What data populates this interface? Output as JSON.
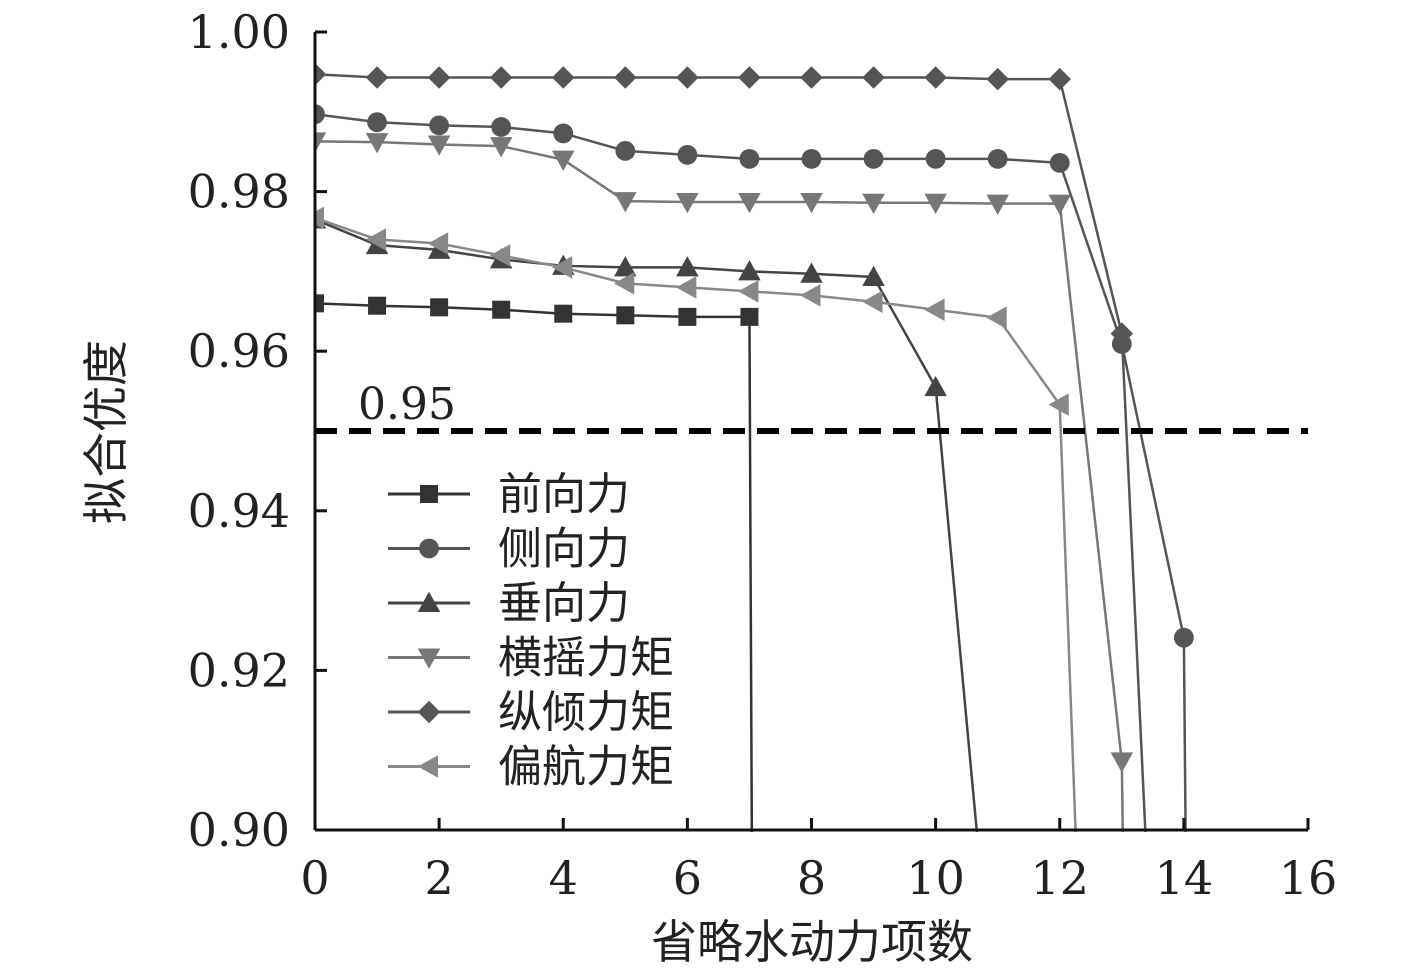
{
  "chart_data": {
    "type": "line",
    "title": "",
    "xlabel": "省略水动力项数",
    "ylabel": "拟合优度",
    "xlim": [
      0,
      16
    ],
    "ylim": [
      0.9,
      1.0
    ],
    "xticks": [
      "0",
      "2",
      "4",
      "6",
      "8",
      "10",
      "12",
      "14",
      "16"
    ],
    "yticks": [
      "0.90",
      "0.92",
      "0.94",
      "0.96",
      "0.98",
      "1.00"
    ],
    "grid": false,
    "legend_position": "lower-left",
    "reference_line": {
      "y": 0.95,
      "label": "0.95",
      "style": "dashed",
      "color": "#000000"
    },
    "series": [
      {
        "name": "前向力",
        "marker": "square",
        "color": "#333333",
        "x": [
          0,
          1,
          2,
          3,
          4,
          5,
          6,
          7,
          7.05
        ],
        "y": [
          0.966,
          0.9657,
          0.9655,
          0.9652,
          0.9647,
          0.9645,
          0.9643,
          0.9643,
          0.88
        ]
      },
      {
        "name": "侧向力",
        "marker": "circle",
        "color": "#555555",
        "x": [
          0,
          1,
          2,
          3,
          4,
          5,
          6,
          7,
          8,
          9,
          10,
          11,
          12,
          13,
          14,
          14.05
        ],
        "y": [
          0.9897,
          0.9887,
          0.9883,
          0.9881,
          0.9873,
          0.9851,
          0.9846,
          0.9841,
          0.9841,
          0.9841,
          0.9841,
          0.9841,
          0.9836,
          0.9609,
          0.9241,
          0.88
        ]
      },
      {
        "name": "垂向力",
        "marker": "triangle-up",
        "color": "#444444",
        "x": [
          0,
          1,
          2,
          3,
          4,
          5,
          6,
          7,
          8,
          9,
          10,
          10.9
        ],
        "y": [
          0.9765,
          0.9733,
          0.9727,
          0.9715,
          0.9707,
          0.9705,
          0.9705,
          0.97,
          0.9697,
          0.9693,
          0.9555,
          0.88
        ]
      },
      {
        "name": "横摇力矩",
        "marker": "triangle-down",
        "color": "#777777",
        "x": [
          0,
          1,
          2,
          3,
          4,
          5,
          6,
          7,
          8,
          9,
          10,
          11,
          12,
          13,
          13.05
        ],
        "y": [
          0.9863,
          0.9862,
          0.9859,
          0.9857,
          0.984,
          0.9788,
          0.9787,
          0.9787,
          0.9787,
          0.9786,
          0.9786,
          0.9785,
          0.9785,
          0.9086,
          0.88
        ]
      },
      {
        "name": "纵倾力矩",
        "marker": "diamond",
        "color": "#555555",
        "x": [
          0,
          1,
          2,
          3,
          4,
          5,
          6,
          7,
          8,
          9,
          10,
          11,
          12,
          13,
          13.5
        ],
        "y": [
          0.9947,
          0.9943,
          0.9943,
          0.9943,
          0.9943,
          0.9943,
          0.9943,
          0.9943,
          0.9943,
          0.9943,
          0.9943,
          0.9941,
          0.9941,
          0.9622,
          0.88
        ]
      },
      {
        "name": "偏航力矩",
        "marker": "triangle-left",
        "color": "#888888",
        "x": [
          0,
          1,
          2,
          3,
          4,
          5,
          6,
          7,
          8,
          9,
          10,
          11,
          12,
          12.35
        ],
        "y": [
          0.9767,
          0.974,
          0.9735,
          0.972,
          0.9705,
          0.9685,
          0.968,
          0.9675,
          0.967,
          0.9662,
          0.9652,
          0.9642,
          0.9533,
          0.88
        ]
      }
    ]
  }
}
